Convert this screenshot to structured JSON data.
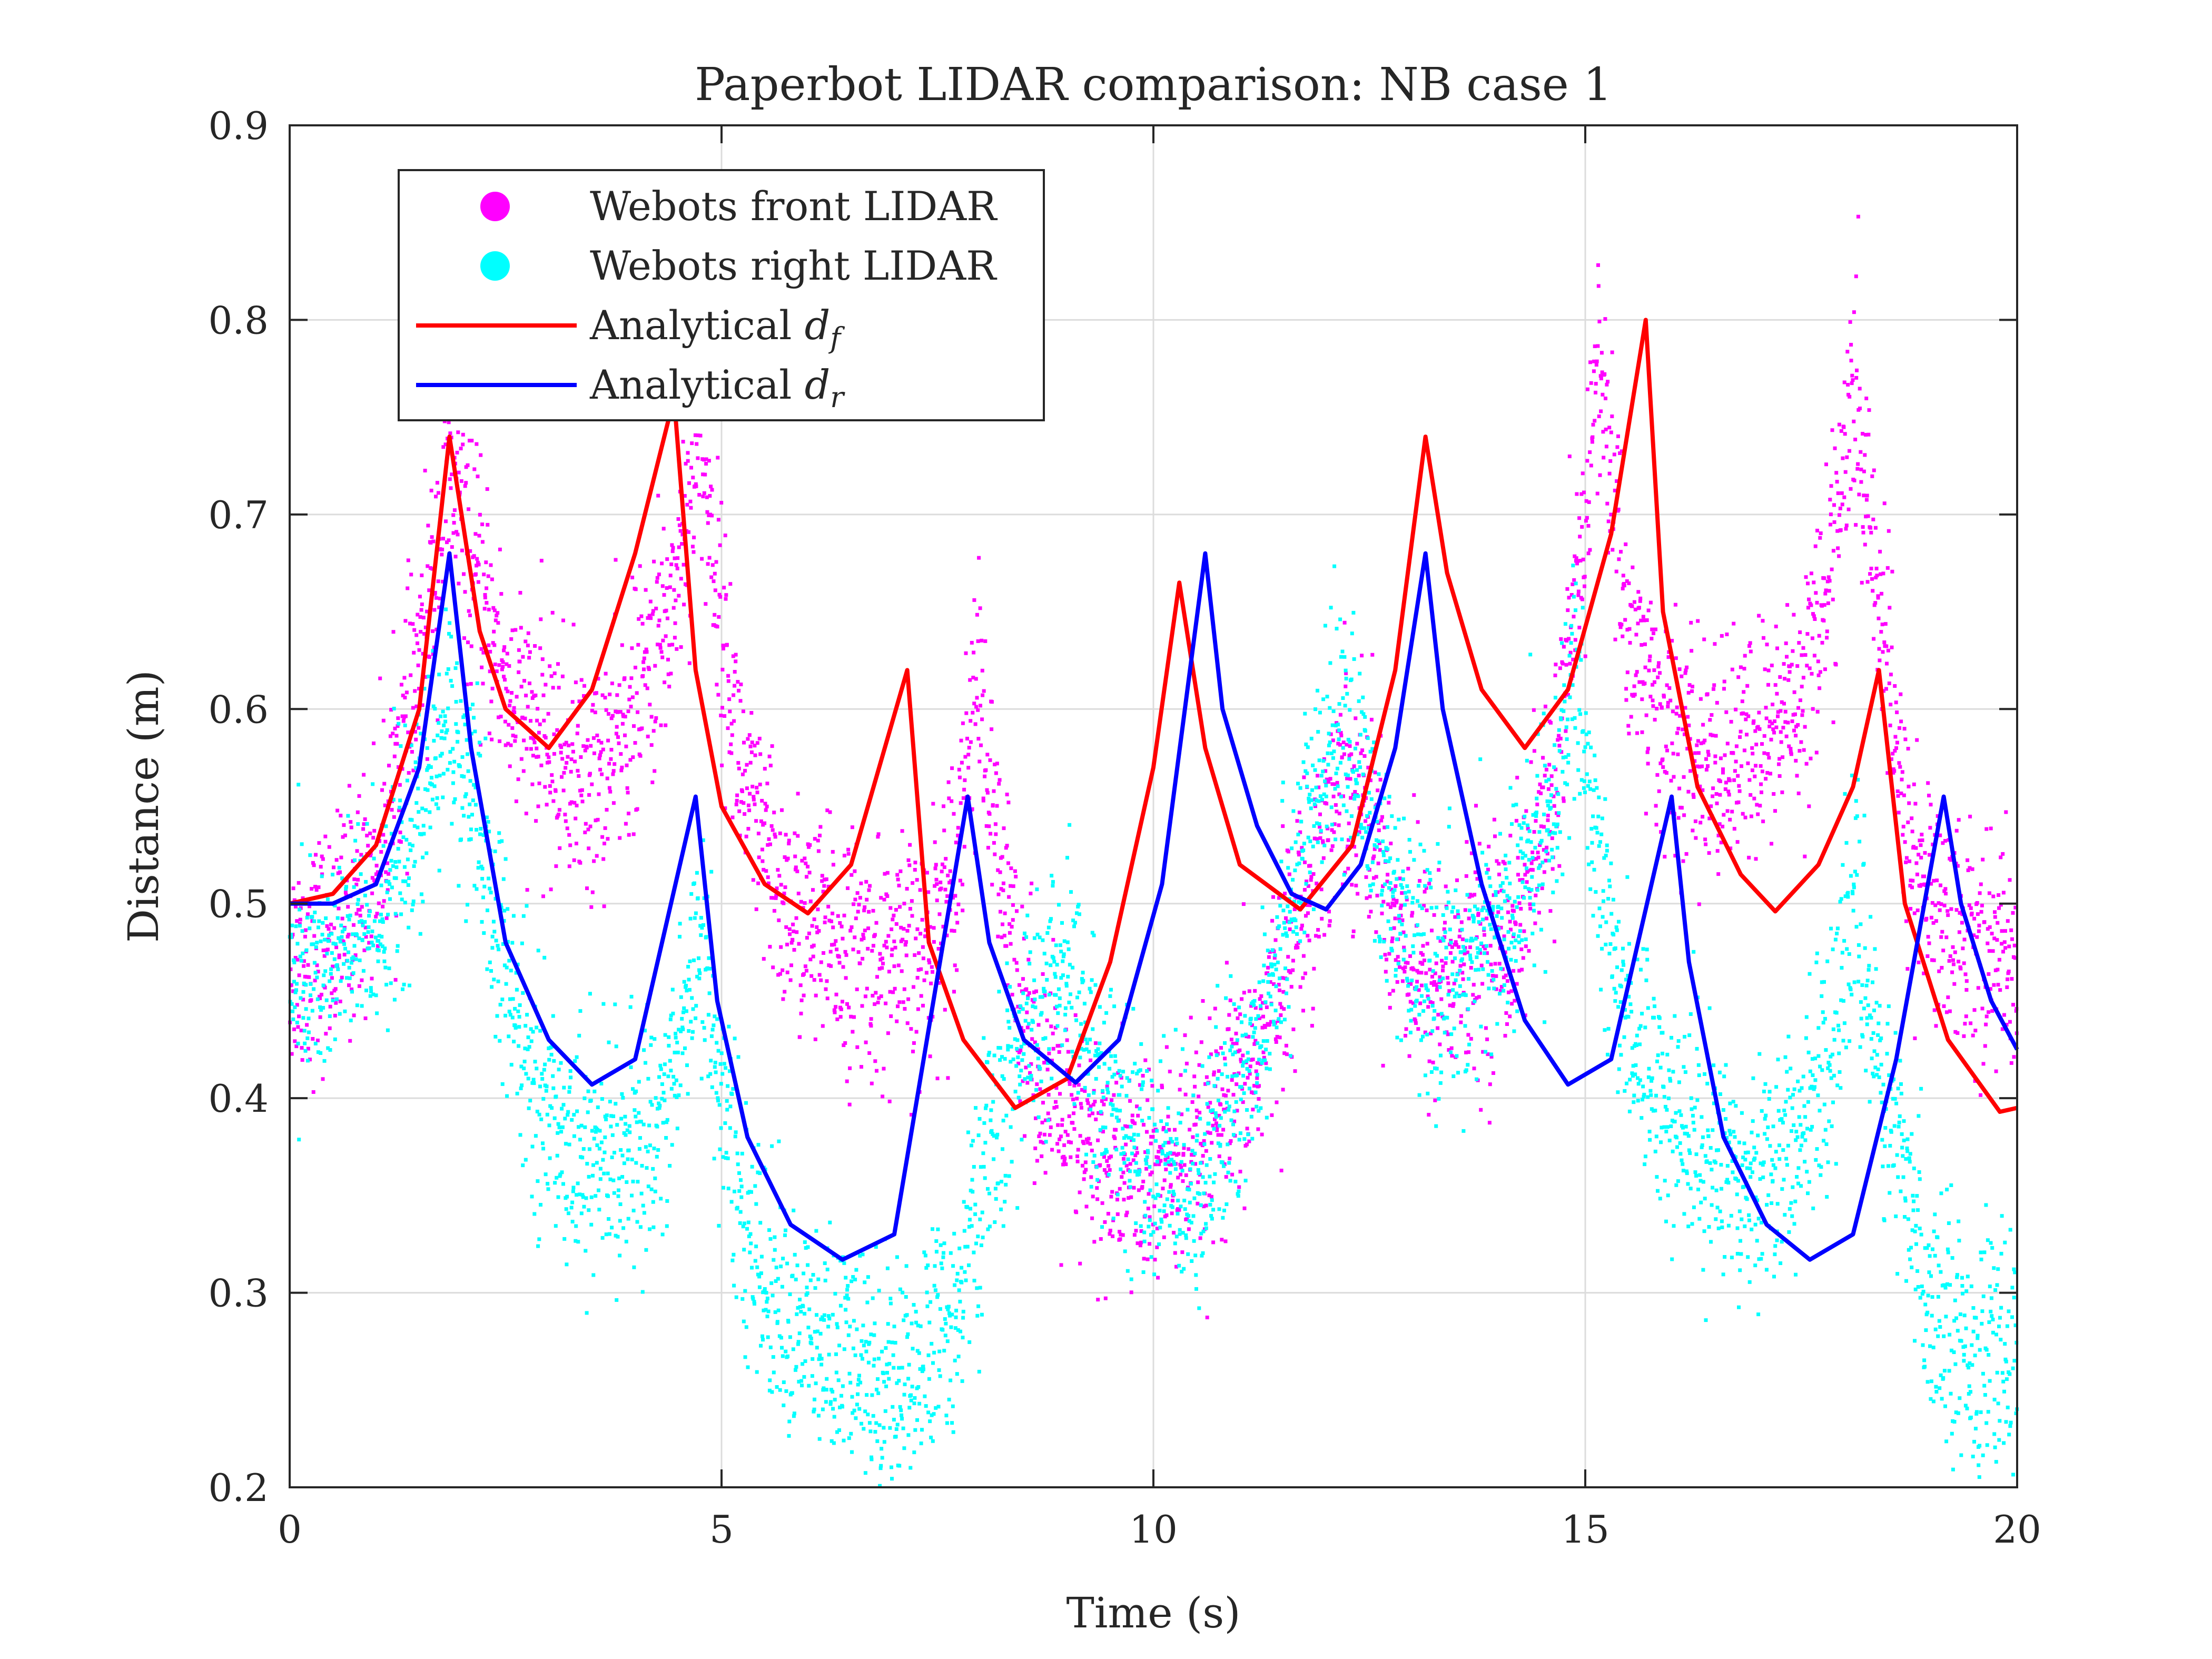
{
  "chart_data": {
    "type": "line",
    "title": "Paperbot LIDAR comparison: NB case 1",
    "xlabel": "Time (s)",
    "ylabel": "Distance (m)",
    "xlim": [
      0,
      20
    ],
    "ylim": [
      0.2,
      0.9
    ],
    "xticks": [
      0,
      5,
      10,
      15,
      20
    ],
    "xtick_labels": [
      "0",
      "5",
      "10",
      "15",
      "20"
    ],
    "yticks": [
      0.2,
      0.3,
      0.4,
      0.5,
      0.6,
      0.7,
      0.8,
      0.9
    ],
    "ytick_labels": [
      "0.2",
      "0.3",
      "0.4",
      "0.5",
      "0.6",
      "0.7",
      "0.8",
      "0.9"
    ],
    "grid": true,
    "legend_position": "top-left",
    "series": [
      {
        "name": "Webots front LIDAR",
        "type": "scatter",
        "color": "#ff00ff",
        "noise": 0.03,
        "x": [
          0,
          0.5,
          1.0,
          1.5,
          1.85,
          2.2,
          2.6,
          3.0,
          3.5,
          4.0,
          4.4,
          4.75,
          5.0,
          5.3,
          5.7,
          6.2,
          6.8,
          7.3,
          7.7,
          7.95,
          8.2,
          8.6,
          9.0,
          9.5,
          10.0,
          10.5,
          11.0,
          11.4,
          11.8,
          12.2,
          12.5,
          12.8,
          13.2,
          13.7,
          14.2,
          14.6,
          14.9,
          15.15,
          15.5,
          16.0,
          16.5,
          17.0,
          17.5,
          17.8,
          18.1,
          18.4,
          18.7,
          19.0,
          19.5,
          20.0
        ],
        "y": [
          0.47,
          0.48,
          0.52,
          0.62,
          0.72,
          0.66,
          0.6,
          0.58,
          0.56,
          0.6,
          0.65,
          0.74,
          0.64,
          0.55,
          0.5,
          0.48,
          0.47,
          0.47,
          0.52,
          0.62,
          0.52,
          0.43,
          0.38,
          0.365,
          0.36,
          0.37,
          0.4,
          0.45,
          0.51,
          0.57,
          0.55,
          0.49,
          0.46,
          0.47,
          0.49,
          0.55,
          0.65,
          0.78,
          0.64,
          0.58,
          0.57,
          0.58,
          0.61,
          0.66,
          0.76,
          0.66,
          0.54,
          0.5,
          0.48,
          0.47
        ]
      },
      {
        "name": "Webots right LIDAR",
        "type": "scatter",
        "color": "#00ffff",
        "noise": 0.03,
        "x": [
          0,
          0.5,
          1.0,
          1.5,
          1.85,
          2.2,
          2.6,
          3.0,
          3.5,
          4.0,
          4.4,
          4.75,
          5.0,
          5.3,
          5.7,
          6.2,
          6.8,
          7.3,
          7.7,
          7.95,
          8.2,
          8.6,
          9.0,
          9.5,
          10.0,
          10.5,
          11.0,
          11.4,
          11.8,
          12.2,
          12.5,
          12.8,
          13.2,
          13.7,
          14.2,
          14.6,
          14.9,
          15.15,
          15.5,
          16.0,
          16.5,
          17.0,
          17.5,
          17.8,
          18.1,
          18.4,
          18.7,
          19.0,
          19.5,
          20.0
        ],
        "y": [
          0.46,
          0.47,
          0.49,
          0.54,
          0.6,
          0.53,
          0.44,
          0.39,
          0.37,
          0.37,
          0.4,
          0.49,
          0.4,
          0.33,
          0.29,
          0.27,
          0.26,
          0.26,
          0.29,
          0.34,
          0.39,
          0.44,
          0.46,
          0.4,
          0.36,
          0.36,
          0.4,
          0.47,
          0.54,
          0.6,
          0.55,
          0.49,
          0.46,
          0.47,
          0.5,
          0.55,
          0.61,
          0.51,
          0.44,
          0.39,
          0.37,
          0.36,
          0.38,
          0.42,
          0.5,
          0.42,
          0.35,
          0.3,
          0.27,
          0.26
        ]
      },
      {
        "name": "Analytical $d_f$",
        "label_base": "Analytical",
        "label_symbol": "d",
        "label_subscript": "f",
        "type": "line",
        "color": "#ff0000",
        "x": [
          0,
          0.5,
          1.0,
          1.5,
          1.85,
          2.2,
          2.5,
          3.0,
          3.5,
          4.0,
          4.45,
          4.7,
          5.0,
          5.5,
          6.0,
          6.5,
          7.15,
          7.4,
          7.8,
          8.4,
          9.0,
          9.5,
          10.0,
          10.3,
          10.6,
          11.0,
          11.7,
          12.3,
          12.8,
          13.15,
          13.4,
          13.8,
          14.3,
          14.8,
          15.3,
          15.7,
          15.9,
          16.3,
          16.8,
          17.2,
          17.7,
          18.1,
          18.4,
          18.7,
          19.2,
          19.8,
          20.0
        ],
        "y": [
          0.5,
          0.505,
          0.53,
          0.6,
          0.74,
          0.64,
          0.6,
          0.58,
          0.61,
          0.68,
          0.76,
          0.62,
          0.55,
          0.51,
          0.495,
          0.52,
          0.62,
          0.48,
          0.43,
          0.395,
          0.41,
          0.47,
          0.57,
          0.665,
          0.58,
          0.52,
          0.497,
          0.53,
          0.62,
          0.74,
          0.67,
          0.61,
          0.58,
          0.61,
          0.69,
          0.8,
          0.65,
          0.56,
          0.515,
          0.496,
          0.52,
          0.56,
          0.62,
          0.5,
          0.43,
          0.393,
          0.395
        ]
      },
      {
        "name": "Analytical $d_r$",
        "label_base": "Analytical",
        "label_symbol": "d",
        "label_subscript": "r",
        "type": "line",
        "color": "#0000ff",
        "x": [
          0,
          0.5,
          1.0,
          1.5,
          1.85,
          2.1,
          2.5,
          3.0,
          3.5,
          4.0,
          4.7,
          4.95,
          5.3,
          5.8,
          6.4,
          7.0,
          7.85,
          8.1,
          8.5,
          9.1,
          9.6,
          10.1,
          10.6,
          10.8,
          11.2,
          11.6,
          12.0,
          12.4,
          12.8,
          13.15,
          13.35,
          13.8,
          14.3,
          14.8,
          15.3,
          16.0,
          16.2,
          16.6,
          17.1,
          17.6,
          18.1,
          18.6,
          19.15,
          19.35,
          19.7,
          20.0
        ],
        "y": [
          0.5,
          0.5,
          0.51,
          0.57,
          0.68,
          0.58,
          0.48,
          0.43,
          0.407,
          0.42,
          0.555,
          0.45,
          0.38,
          0.335,
          0.317,
          0.33,
          0.555,
          0.48,
          0.43,
          0.408,
          0.43,
          0.51,
          0.68,
          0.6,
          0.54,
          0.505,
          0.497,
          0.52,
          0.58,
          0.68,
          0.6,
          0.51,
          0.44,
          0.407,
          0.42,
          0.555,
          0.47,
          0.38,
          0.335,
          0.317,
          0.33,
          0.42,
          0.555,
          0.5,
          0.45,
          0.425
        ]
      }
    ]
  }
}
